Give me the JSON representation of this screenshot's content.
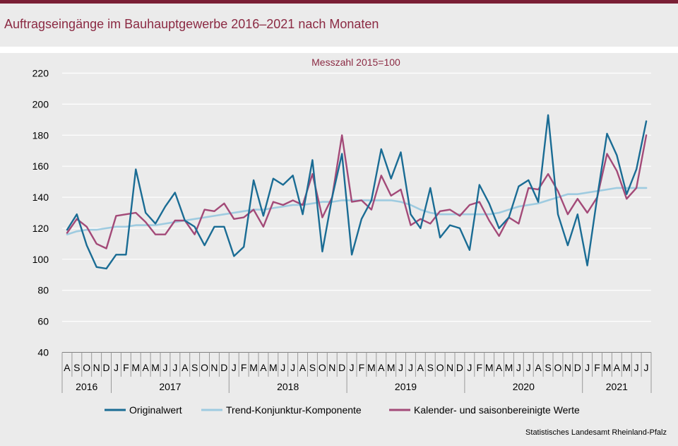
{
  "title": "Auftragseingänge im Bauhauptgewerbe 2016–2021 nach Monaten",
  "source": "Statistisches Landesamt  Rheinland-Pfalz",
  "chart_data": {
    "type": "line",
    "subtitle": "Messzahl  2015=100",
    "ylim": [
      40,
      220
    ],
    "yticks": [
      40,
      60,
      80,
      100,
      120,
      140,
      160,
      180,
      200,
      220
    ],
    "grid": true,
    "legend_position": "bottom",
    "month_labels": [
      "A",
      "S",
      "O",
      "N",
      "D",
      "J",
      "F",
      "M",
      "A",
      "M",
      "J",
      "J",
      "A",
      "S",
      "O",
      "N",
      "D",
      "J",
      "F",
      "M",
      "A",
      "M",
      "J",
      "J",
      "A",
      "S",
      "O",
      "N",
      "D",
      "J",
      "F",
      "M",
      "A",
      "M",
      "J",
      "J",
      "A",
      "S",
      "O",
      "N",
      "D",
      "J",
      "F",
      "M",
      "A",
      "M",
      "J",
      "J",
      "A",
      "S",
      "O",
      "N",
      "D",
      "J",
      "F",
      "M",
      "A",
      "M",
      "J",
      "J"
    ],
    "years": [
      {
        "label": "2016",
        "months": 5
      },
      {
        "label": "2017",
        "months": 12
      },
      {
        "label": "2018",
        "months": 12
      },
      {
        "label": "2019",
        "months": 12
      },
      {
        "label": "2020",
        "months": 12
      },
      {
        "label": "2021",
        "months": 7
      }
    ],
    "series": [
      {
        "name": "Originalwert",
        "color": "#1a6c94",
        "values": [
          119,
          129,
          109,
          95,
          94,
          103,
          103,
          158,
          130,
          123,
          134,
          143,
          125,
          121,
          109,
          121,
          121,
          102,
          108,
          151,
          128,
          152,
          148,
          154,
          129,
          164,
          105,
          140,
          168,
          103,
          126,
          138,
          171,
          152,
          169,
          129,
          120,
          146,
          114,
          122,
          120,
          106,
          148,
          136,
          120,
          127,
          147,
          151,
          137,
          193,
          129,
          109,
          129,
          96,
          140,
          181,
          167,
          142,
          158,
          189
        ]
      },
      {
        "name": "Trend-Konjunktur-Komponente",
        "color": "#9ecbe0",
        "values": [
          116,
          118,
          119,
          119,
          120,
          121,
          121,
          122,
          122,
          122,
          123,
          124,
          125,
          126,
          127,
          128,
          129,
          130,
          131,
          132,
          132,
          133,
          134,
          135,
          135,
          136,
          137,
          137,
          138,
          138,
          138,
          138,
          138,
          138,
          137,
          135,
          132,
          130,
          129,
          129,
          129,
          129,
          129,
          129,
          130,
          132,
          134,
          135,
          136,
          138,
          140,
          142,
          142,
          143,
          144,
          145,
          146,
          146,
          146,
          146
        ]
      },
      {
        "name": "Kalender- und saisonbereinigte Werte",
        "color": "#a34a78",
        "values": [
          117,
          126,
          121,
          110,
          107,
          128,
          129,
          130,
          124,
          116,
          116,
          125,
          125,
          116,
          132,
          131,
          136,
          126,
          127,
          132,
          121,
          137,
          135,
          138,
          135,
          155,
          127,
          140,
          180,
          137,
          138,
          132,
          154,
          141,
          145,
          122,
          126,
          123,
          131,
          132,
          128,
          135,
          137,
          125,
          115,
          127,
          123,
          146,
          145,
          155,
          144,
          129,
          139,
          130,
          140,
          168,
          157,
          139,
          146,
          180
        ]
      }
    ]
  }
}
